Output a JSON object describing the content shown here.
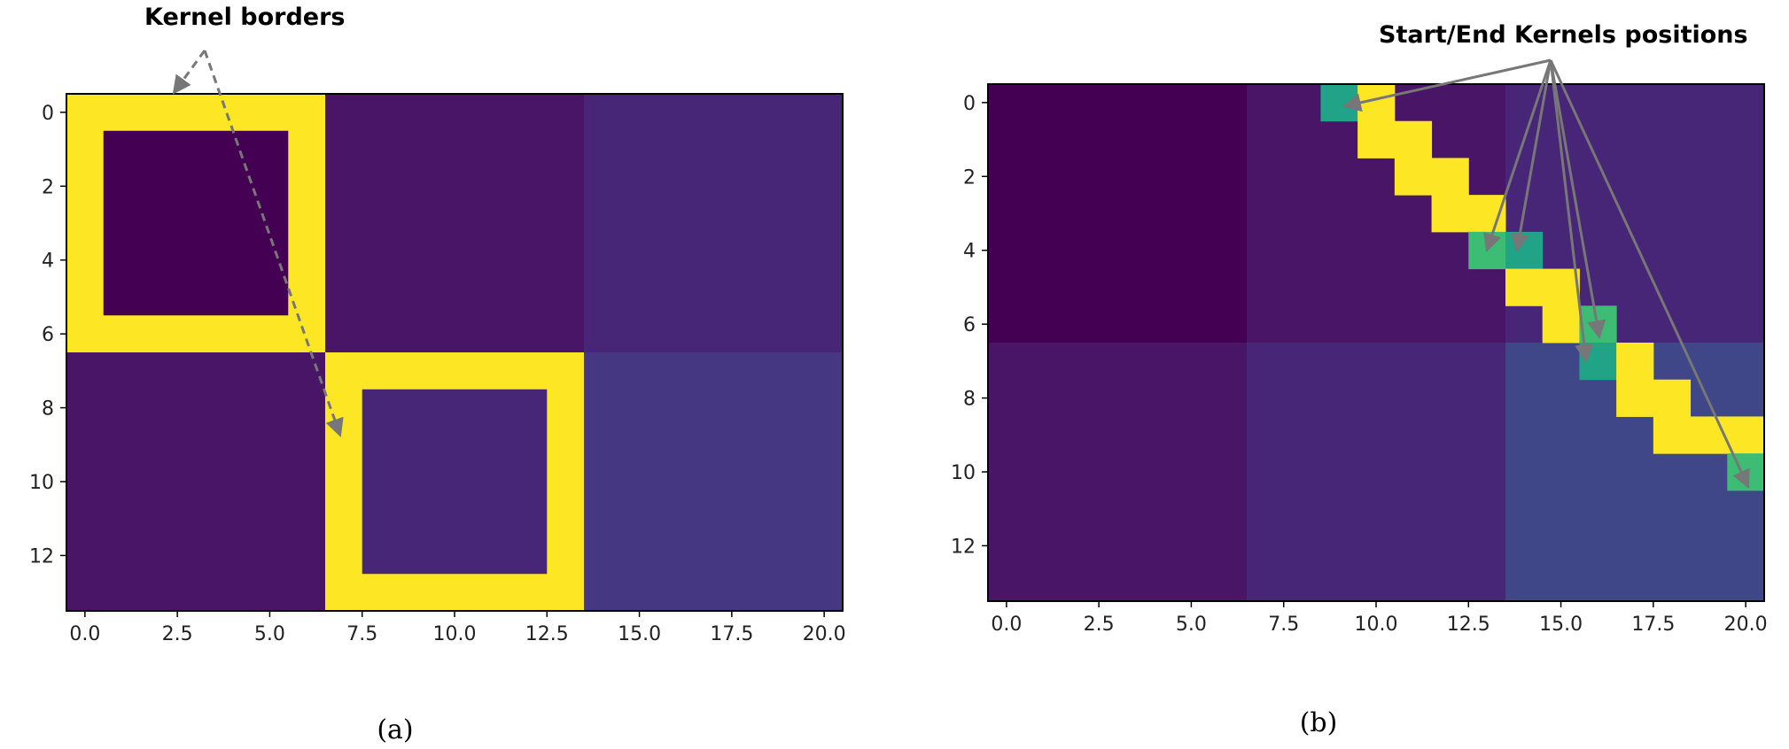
{
  "palette": {
    "c0": "#440154",
    "c1": "#481567",
    "c2": "#482677",
    "c3": "#453781",
    "c4": "#3f4788",
    "mark_teal": "#20a387",
    "mark_green": "#3dbc74",
    "yellow": "#fde725",
    "arrow": "#777777",
    "text": "#000000"
  },
  "chart_data": [
    {
      "type": "heatmap",
      "caption": "(a)",
      "annotation": "Kernel borders",
      "x_ticks": [
        "0.0",
        "2.5",
        "5.0",
        "7.5",
        "10.0",
        "12.5",
        "15.0",
        "17.5",
        "20.0"
      ],
      "y_ticks": [
        "0",
        "2",
        "4",
        "6",
        "8",
        "10",
        "12"
      ],
      "xlim": [
        -0.5,
        20.5
      ],
      "ylim": [
        13.5,
        -0.5
      ],
      "grid": false,
      "blocks": [
        {
          "x": [
            0,
            6
          ],
          "y": [
            0,
            6
          ],
          "color": "c0"
        },
        {
          "x": [
            7,
            13
          ],
          "y": [
            0,
            6
          ],
          "color": "c1"
        },
        {
          "x": [
            14,
            20
          ],
          "y": [
            0,
            6
          ],
          "color": "c2"
        },
        {
          "x": [
            0,
            6
          ],
          "y": [
            7,
            13
          ],
          "color": "c1"
        },
        {
          "x": [
            7,
            13
          ],
          "y": [
            7,
            13
          ],
          "color": "c2"
        },
        {
          "x": [
            14,
            20
          ],
          "y": [
            7,
            13
          ],
          "color": "c3"
        }
      ],
      "kernel_borders": [
        {
          "x": [
            0,
            6
          ],
          "y": [
            0,
            6
          ],
          "color": "yellow"
        },
        {
          "x": [
            7,
            13
          ],
          "y": [
            7,
            13
          ],
          "color": "yellow"
        }
      ],
      "cells": []
    },
    {
      "type": "heatmap",
      "caption": "(b)",
      "annotation": "Start/End Kernels positions",
      "x_ticks": [
        "0.0",
        "2.5",
        "5.0",
        "7.5",
        "10.0",
        "12.5",
        "15.0",
        "17.5",
        "20.0"
      ],
      "y_ticks": [
        "0",
        "2",
        "4",
        "6",
        "8",
        "10",
        "12"
      ],
      "xlim": [
        -0.5,
        20.5
      ],
      "ylim": [
        13.5,
        -0.5
      ],
      "grid": false,
      "blocks": [
        {
          "x": [
            0,
            6
          ],
          "y": [
            0,
            6
          ],
          "color": "c0"
        },
        {
          "x": [
            7,
            13
          ],
          "y": [
            0,
            6
          ],
          "color": "c1"
        },
        {
          "x": [
            14,
            20
          ],
          "y": [
            0,
            6
          ],
          "color": "c2"
        },
        {
          "x": [
            0,
            6
          ],
          "y": [
            7,
            13
          ],
          "color": "c1"
        },
        {
          "x": [
            7,
            13
          ],
          "y": [
            7,
            13
          ],
          "color": "c2"
        },
        {
          "x": [
            14,
            20
          ],
          "y": [
            7,
            13
          ],
          "color": "c4"
        }
      ],
      "kernel_borders": [],
      "cells": [
        {
          "x": 9,
          "y": 0,
          "color": "mark_teal"
        },
        {
          "x": 10,
          "y": 0,
          "color": "yellow"
        },
        {
          "x": 10,
          "y": 1,
          "color": "yellow"
        },
        {
          "x": 11,
          "y": 1,
          "color": "yellow"
        },
        {
          "x": 11,
          "y": 2,
          "color": "yellow"
        },
        {
          "x": 12,
          "y": 2,
          "color": "yellow"
        },
        {
          "x": 12,
          "y": 3,
          "color": "yellow"
        },
        {
          "x": 13,
          "y": 3,
          "color": "yellow"
        },
        {
          "x": 13,
          "y": 4,
          "color": "mark_green"
        },
        {
          "x": 14,
          "y": 4,
          "color": "mark_teal"
        },
        {
          "x": 14,
          "y": 5,
          "color": "yellow"
        },
        {
          "x": 15,
          "y": 5,
          "color": "yellow"
        },
        {
          "x": 15,
          "y": 6,
          "color": "yellow"
        },
        {
          "x": 16,
          "y": 6,
          "color": "mark_green"
        },
        {
          "x": 16,
          "y": 7,
          "color": "mark_teal"
        },
        {
          "x": 17,
          "y": 7,
          "color": "yellow"
        },
        {
          "x": 17,
          "y": 8,
          "color": "yellow"
        },
        {
          "x": 18,
          "y": 8,
          "color": "yellow"
        },
        {
          "x": 18,
          "y": 9,
          "color": "yellow"
        },
        {
          "x": 19,
          "y": 9,
          "color": "yellow"
        },
        {
          "x": 20,
          "y": 9,
          "color": "yellow"
        },
        {
          "x": 20,
          "y": 10,
          "color": "mark_green"
        }
      ]
    }
  ]
}
